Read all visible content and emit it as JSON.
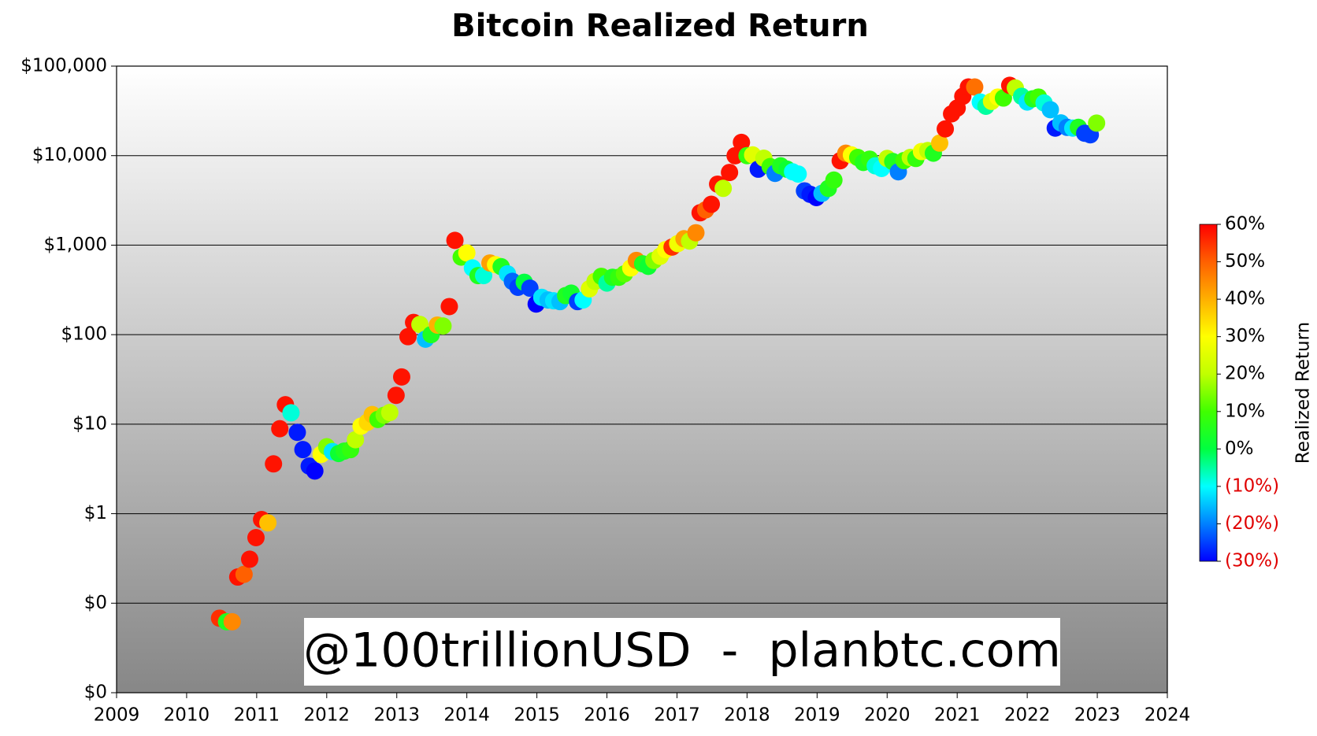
{
  "chart_data": {
    "type": "scatter",
    "title": "Bitcoin Realized Return",
    "annotation": "@100trillionUSD  -  planbtc.com",
    "log_y": true,
    "grid": true,
    "xlim": [
      2009,
      2024
    ],
    "xticks": [
      2009,
      2010,
      2011,
      2012,
      2013,
      2014,
      2015,
      2016,
      2017,
      2018,
      2019,
      2020,
      2021,
      2022,
      2023,
      2024
    ],
    "ylim": [
      0.01,
      100000
    ],
    "yticks": [
      {
        "value": 0.01,
        "label": "$0"
      },
      {
        "value": 0.1,
        "label": "$0"
      },
      {
        "value": 1,
        "label": "$1"
      },
      {
        "value": 10,
        "label": "$10"
      },
      {
        "value": 100,
        "label": "$100"
      },
      {
        "value": 1000,
        "label": "$1,000"
      },
      {
        "value": 10000,
        "label": "$10,000"
      },
      {
        "value": 100000,
        "label": "$100,000"
      }
    ],
    "colorbar": {
      "label": "Realized Return",
      "lim": [
        -30,
        60
      ],
      "ticks": [
        {
          "value": 60,
          "label": "60%"
        },
        {
          "value": 50,
          "label": "50%"
        },
        {
          "value": 40,
          "label": "40%"
        },
        {
          "value": 30,
          "label": "30%"
        },
        {
          "value": 20,
          "label": "20%"
        },
        {
          "value": 10,
          "label": "10%"
        },
        {
          "value": 0,
          "label": "0%"
        },
        {
          "value": -10,
          "label": "(10%)"
        },
        {
          "value": -20,
          "label": "(20%)"
        },
        {
          "value": -30,
          "label": "(30%)"
        }
      ],
      "colormap": [
        "#0000ff",
        "#0080ff",
        "#00ffff",
        "#00ff40",
        "#40ff00",
        "#c0ff00",
        "#ffff00",
        "#ffb000",
        "#ff6000",
        "#ff0000"
      ],
      "negative_label_color": "#e00000"
    },
    "x": [
      2010.47,
      2010.57,
      2010.65,
      2010.73,
      2010.82,
      2010.9,
      2010.99,
      2011.07,
      2011.16,
      2011.24,
      2011.33,
      2011.41,
      2011.49,
      2011.58,
      2011.66,
      2011.75,
      2011.83,
      2011.92,
      2012.0,
      2012.08,
      2012.17,
      2012.25,
      2012.34,
      2012.41,
      2012.49,
      2012.58,
      2012.65,
      2012.73,
      2012.82,
      2012.9,
      2012.99,
      2013.07,
      2013.16,
      2013.24,
      2013.33,
      2013.41,
      2013.49,
      2013.58,
      2013.66,
      2013.75,
      2013.83,
      2013.92,
      2014.0,
      2014.08,
      2014.16,
      2014.24,
      2014.33,
      2014.41,
      2014.49,
      2014.58,
      2014.65,
      2014.73,
      2014.82,
      2014.9,
      2014.99,
      2015.07,
      2015.16,
      2015.24,
      2015.33,
      2015.41,
      2015.49,
      2015.58,
      2015.66,
      2015.75,
      2015.83,
      2015.92,
      2016.0,
      2016.08,
      2016.17,
      2016.25,
      2016.34,
      2016.42,
      2016.51,
      2016.59,
      2016.67,
      2016.76,
      2016.84,
      2016.93,
      2017.01,
      2017.1,
      2017.18,
      2017.27,
      2017.33,
      2017.41,
      2017.49,
      2017.58,
      2017.66,
      2017.75,
      2017.83,
      2017.92,
      2018.0,
      2018.08,
      2018.16,
      2018.24,
      2018.33,
      2018.4,
      2018.48,
      2018.57,
      2018.65,
      2018.73,
      2018.82,
      2018.9,
      2018.99,
      2019.07,
      2019.16,
      2019.24,
      2019.33,
      2019.41,
      2019.49,
      2019.58,
      2019.66,
      2019.75,
      2019.83,
      2019.92,
      2020.0,
      2020.08,
      2020.16,
      2020.24,
      2020.33,
      2020.41,
      2020.49,
      2020.58,
      2020.66,
      2020.75,
      2020.83,
      2020.92,
      2021.0,
      2021.08,
      2021.16,
      2021.25,
      2021.33,
      2021.41,
      2021.49,
      2021.58,
      2021.66,
      2021.75,
      2021.83,
      2021.92,
      2022.0,
      2022.08,
      2022.16,
      2022.24,
      2022.33,
      2022.4,
      2022.48,
      2022.57,
      2022.65,
      2022.73,
      2022.82,
      2022.9,
      2022.99
    ],
    "values": [
      0.068,
      0.062,
      0.062,
      0.196,
      0.21,
      0.31,
      0.54,
      0.86,
      0.79,
      3.6,
      8.9,
      16.5,
      13.4,
      8.1,
      5.2,
      3.4,
      3.0,
      4.6,
      5.6,
      4.95,
      4.7,
      5.0,
      5.2,
      6.7,
      9.5,
      10.5,
      12.8,
      11.3,
      12.6,
      13.5,
      21,
      33.7,
      95,
      137,
      130,
      89,
      100,
      128,
      125,
      206,
      1130,
      735,
      818,
      556,
      457,
      457,
      632,
      605,
      575,
      478,
      394,
      338,
      385,
      331,
      220,
      261,
      244,
      239,
      234,
      273,
      291,
      234,
      244,
      325,
      394,
      448,
      377,
      438,
      438,
      478,
      556,
      675,
      619,
      580,
      675,
      751,
      892,
      952,
      1040,
      1180,
      1110,
      1375,
      2300,
      2480,
      2860,
      4800,
      4310,
      6490,
      9980,
      14070,
      10000,
      10200,
      7060,
      9360,
      7540,
      6340,
      7700,
      7060,
      6600,
      6230,
      4040,
      3700,
      3400,
      3790,
      4300,
      5330,
      8770,
      10650,
      10200,
      9540,
      8400,
      9130,
      7700,
      7200,
      9300,
      8600,
      6600,
      8800,
      9540,
      9300,
      11100,
      11400,
      10650,
      13800,
      19900,
      29300,
      34000,
      46000,
      58400,
      58400,
      39700,
      35600,
      40300,
      45100,
      44000,
      61000,
      57000,
      46000,
      39700,
      43200,
      45100,
      38800,
      32600,
      20300,
      23200,
      20700,
      20300,
      20700,
      17800,
      17100,
      23100
    ],
    "returns": [
      55,
      5,
      45,
      58,
      50,
      58,
      58,
      58,
      38,
      58,
      58,
      58,
      -8,
      -28,
      -28,
      -28,
      -30,
      30,
      15,
      -12,
      2,
      5,
      8,
      20,
      30,
      35,
      38,
      10,
      15,
      20,
      58,
      58,
      58,
      58,
      20,
      -15,
      5,
      40,
      15,
      58,
      58,
      10,
      30,
      -10,
      5,
      -8,
      42,
      30,
      5,
      -12,
      -22,
      -25,
      0,
      -25,
      -30,
      -12,
      -15,
      -12,
      -15,
      5,
      3,
      -25,
      -10,
      25,
      20,
      10,
      -5,
      5,
      8,
      12,
      30,
      45,
      5,
      2,
      15,
      25,
      30,
      55,
      28,
      42,
      20,
      45,
      58,
      50,
      58,
      58,
      20,
      58,
      58,
      58,
      8,
      25,
      -28,
      20,
      10,
      -20,
      5,
      2,
      -10,
      -10,
      -25,
      -28,
      -30,
      -15,
      5,
      8,
      58,
      45,
      30,
      10,
      5,
      8,
      -8,
      -10,
      20,
      5,
      -20,
      10,
      20,
      8,
      28,
      20,
      5,
      38,
      58,
      58,
      58,
      58,
      58,
      48,
      -10,
      -5,
      25,
      30,
      10,
      58,
      20,
      -5,
      -12,
      5,
      10,
      -8,
      -15,
      -28,
      -15,
      -20,
      -12,
      5,
      -25,
      -25,
      15
    ]
  }
}
